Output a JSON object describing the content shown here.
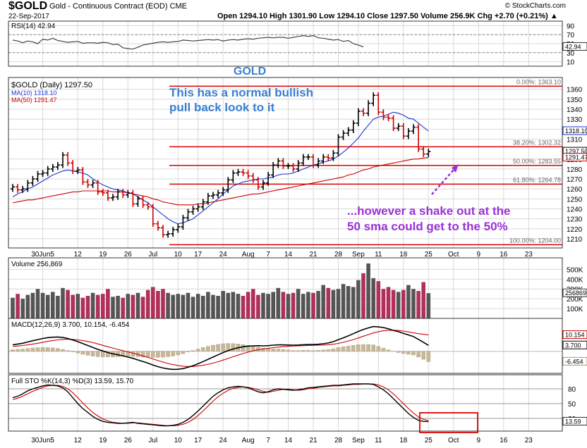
{
  "header": {
    "symbol": "$GOLD",
    "description": "Gold - Continuous Contract (EOD)  CME",
    "date": "22-Sep-2017",
    "source": "© StockCharts.com",
    "quote": "Open 1294.10  High 1301.90  Low 1294.10  Close 1297.50  Volume 256.9K  Chg +2.70 (+0.21%) ▲"
  },
  "colors": {
    "up_bar": "#000000",
    "down_bar": "#cc0000",
    "ma10": "#1a33cc",
    "ma50": "#cc0000",
    "annotation_blue": "#3a7fd0",
    "annotation_purple": "#9b30d9",
    "fib_line": "#dd0000",
    "volume_up": "#555555",
    "volume_down": "#b0305a",
    "macd_hist": "#c8b89a",
    "grid": "#d8d8d8"
  },
  "chart_data": [
    {
      "panel": "rsi",
      "type": "line",
      "title": "RSI(14) 42.94",
      "y_ticks": [
        "90",
        "70",
        "50",
        "30",
        "10"
      ],
      "last_label": "42.94",
      "series": [
        {
          "name": "RSI(14)",
          "values": [
            58,
            56,
            52,
            56,
            54,
            50,
            60,
            58,
            62,
            57,
            55,
            53,
            54,
            55,
            51,
            52,
            52,
            51,
            53,
            52,
            48,
            49,
            41,
            39,
            38,
            42,
            47,
            49,
            51,
            53,
            54,
            53,
            54,
            55,
            58,
            57,
            56,
            57,
            58,
            59,
            58,
            59,
            56,
            58,
            59,
            58,
            60,
            61,
            60,
            62,
            63,
            64,
            63,
            64,
            64,
            62,
            64,
            66,
            68,
            66,
            68,
            63,
            62,
            60,
            58,
            59,
            55,
            57,
            50,
            47,
            43
          ]
        }
      ]
    },
    {
      "panel": "price",
      "type": "ohlc",
      "title": "$GOLD (Daily) 1297.50",
      "legend": [
        {
          "name": "MA(10) 1318.10",
          "color": "#1a33cc"
        },
        {
          "name": "MA(50) 1291.47",
          "color": "#cc0000"
        }
      ],
      "ylim": [
        1200,
        1372
      ],
      "y_ticks": [
        1210,
        1220,
        1230,
        1240,
        1250,
        1260,
        1270,
        1280,
        1290,
        1310,
        1320,
        1330,
        1340,
        1350,
        1360
      ],
      "value_labels": [
        "1318.10",
        "1297.50",
        "1291.47"
      ],
      "x_ticks": [
        {
          "label": "30Jun5",
          "idx": 6
        },
        {
          "label": "12",
          "idx": 13
        },
        {
          "label": "19",
          "idx": 18
        },
        {
          "label": "26",
          "idx": 23
        },
        {
          "label": "Jul",
          "idx": 28
        },
        {
          "label": "10",
          "idx": 33
        },
        {
          "label": "17",
          "idx": 37
        },
        {
          "label": "24",
          "idx": 42
        },
        {
          "label": "Aug",
          "idx": 47
        },
        {
          "label": "7",
          "idx": 51
        },
        {
          "label": "14",
          "idx": 55
        },
        {
          "label": "21",
          "idx": 60
        },
        {
          "label": "28",
          "idx": 65
        },
        {
          "label": "Sep",
          "idx": 69
        },
        {
          "label": "11",
          "idx": 73
        },
        {
          "label": "18",
          "idx": 78
        },
        {
          "label": "25",
          "idx": 83
        },
        {
          "label": "Oct",
          "idx": 88
        },
        {
          "label": "9",
          "idx": 93
        },
        {
          "label": "16",
          "idx": 98
        },
        {
          "label": "23",
          "idx": 103
        }
      ],
      "closes": [
        1262,
        1259,
        1260,
        1266,
        1270,
        1275,
        1276,
        1280,
        1282,
        1284,
        1294,
        1286,
        1278,
        1279,
        1267,
        1264,
        1266,
        1257,
        1256,
        1251,
        1252,
        1257,
        1254,
        1256,
        1245,
        1250,
        1244,
        1242,
        1225,
        1221,
        1214,
        1215,
        1219,
        1222,
        1231,
        1237,
        1240,
        1242,
        1247,
        1253,
        1254,
        1256,
        1259,
        1269,
        1276,
        1277,
        1276,
        1273,
        1269,
        1262,
        1266,
        1274,
        1284,
        1288,
        1283,
        1283,
        1280,
        1286,
        1292,
        1292,
        1284,
        1288,
        1292,
        1291,
        1296,
        1312,
        1316,
        1319,
        1326,
        1338,
        1336,
        1346,
        1354,
        1337,
        1332,
        1331,
        1321,
        1323,
        1313,
        1318,
        1322,
        1300,
        1295,
        1297.5
      ],
      "ma10": [
        1252,
        1255,
        1257,
        1260,
        1262,
        1265,
        1268,
        1271,
        1274,
        1276,
        1278,
        1279,
        1278,
        1277,
        1276,
        1274,
        1270,
        1267,
        1264,
        1262,
        1260,
        1259,
        1258,
        1256,
        1255,
        1252,
        1249,
        1246,
        1242,
        1238,
        1234,
        1230,
        1227,
        1225,
        1226,
        1228,
        1230,
        1234,
        1238,
        1242,
        1246,
        1250,
        1255,
        1259,
        1263,
        1265,
        1267,
        1268,
        1269,
        1270,
        1270,
        1271,
        1272,
        1274,
        1275,
        1275,
        1276,
        1278,
        1280,
        1282,
        1284,
        1285,
        1287,
        1288,
        1290,
        1293,
        1297,
        1301,
        1306,
        1311,
        1318,
        1324,
        1330,
        1332,
        1333,
        1335,
        1337,
        1336,
        1334,
        1331,
        1330,
        1326,
        1322,
        1318.1
      ],
      "ma50": [
        1246,
        1247,
        1248,
        1249,
        1249,
        1250,
        1251,
        1252,
        1253,
        1254,
        1255,
        1256,
        1257,
        1257,
        1258,
        1258,
        1258,
        1258,
        1258,
        1258,
        1257,
        1257,
        1257,
        1256,
        1255,
        1254,
        1253,
        1252,
        1250,
        1249,
        1247,
        1246,
        1245,
        1244,
        1244,
        1244,
        1244,
        1245,
        1245,
        1246,
        1247,
        1248,
        1249,
        1250,
        1251,
        1252,
        1253,
        1254,
        1255,
        1255,
        1256,
        1257,
        1258,
        1259,
        1260,
        1261,
        1262,
        1263,
        1264,
        1265,
        1266,
        1267,
        1268,
        1269,
        1270,
        1271,
        1272,
        1274,
        1275,
        1277,
        1279,
        1280,
        1282,
        1283,
        1284,
        1285,
        1286,
        1287,
        1288,
        1289,
        1290,
        1290,
        1291,
        1291.47
      ],
      "fib_levels": [
        {
          "label": "0.00%: 1363.10",
          "value": 1363.1
        },
        {
          "label": "38.20%: 1302.32",
          "value": 1302.32
        },
        {
          "label": "50.00%: 1283.55",
          "value": 1283.55
        },
        {
          "label": "61.80%: 1264.78",
          "value": 1264.78
        },
        {
          "label": "100.00%: 1204.00",
          "value": 1204.0
        }
      ],
      "annotations": [
        "GOLD",
        "This has a normal bullish",
        "pull back look to it",
        "...however a shake out at the",
        "50 sma could get to the 50%"
      ]
    },
    {
      "panel": "volume",
      "type": "bar",
      "title": "Volume 256,869",
      "y_ticks": [
        "500K",
        "400K",
        "300K",
        "200K",
        "100K"
      ],
      "last_label": "256869",
      "values": [
        210,
        250,
        200,
        240,
        260,
        300,
        260,
        240,
        270,
        230,
        310,
        290,
        240,
        250,
        210,
        230,
        260,
        240,
        250,
        300,
        220,
        230,
        210,
        250,
        240,
        260,
        220,
        290,
        320,
        280,
        300,
        260,
        240,
        250,
        240,
        260,
        220,
        250,
        230,
        270,
        240,
        230,
        280,
        260,
        270,
        250,
        230,
        270,
        300,
        240,
        260,
        250,
        270,
        310,
        270,
        250,
        260,
        300,
        250,
        270,
        260,
        280,
        340,
        310,
        290,
        300,
        350,
        330,
        320,
        390,
        460,
        560,
        410,
        380,
        300,
        320,
        290,
        270,
        290,
        340,
        300,
        280,
        370,
        256.869
      ]
    },
    {
      "panel": "macd",
      "type": "line",
      "title": "MACD(12,26,9) 3.700, 10.154, -6.454",
      "value_labels": [
        "10.154",
        "3.700",
        "-6.454"
      ],
      "macd": [
        4.0,
        4.5,
        5.0,
        5.8,
        6.6,
        7.3,
        8.0,
        8.5,
        8.8,
        8.9,
        8.6,
        8.0,
        7.0,
        6.0,
        4.8,
        3.6,
        2.4,
        1.2,
        0.2,
        -0.8,
        -1.6,
        -2.2,
        -2.8,
        -3.6,
        -4.4,
        -5.4,
        -6.4,
        -7.4,
        -8.6,
        -9.6,
        -10.4,
        -11.0,
        -11.3,
        -11.2,
        -10.8,
        -10.0,
        -9.0,
        -7.8,
        -6.4,
        -5.0,
        -3.6,
        -2.2,
        -0.8,
        0.4,
        1.4,
        2.2,
        2.8,
        3.2,
        3.4,
        3.5,
        3.4,
        3.5,
        3.8,
        4.0,
        4.0,
        3.9,
        3.8,
        3.9,
        4.1,
        4.2,
        4.2,
        4.4,
        4.7,
        5.2,
        6.0,
        7.2,
        8.4,
        9.6,
        11.0,
        12.4,
        13.6,
        14.6,
        15.4,
        15.2,
        14.8,
        14.0,
        13.0,
        12.2,
        11.2,
        10.2,
        9.2,
        7.4,
        5.6,
        3.7
      ],
      "signal": [
        3.0,
        3.3,
        3.6,
        4.0,
        4.5,
        5.0,
        5.6,
        6.2,
        6.7,
        7.1,
        7.4,
        7.5,
        7.4,
        7.1,
        6.7,
        6.1,
        5.4,
        4.6,
        3.7,
        2.8,
        2.0,
        1.2,
        0.4,
        -0.4,
        -1.2,
        -2.0,
        -2.9,
        -3.8,
        -4.8,
        -5.8,
        -6.7,
        -7.6,
        -8.3,
        -8.9,
        -9.3,
        -9.5,
        -9.5,
        -9.2,
        -8.8,
        -8.1,
        -7.4,
        -6.5,
        -5.5,
        -4.5,
        -3.4,
        -2.4,
        -1.4,
        -0.5,
        0.3,
        0.9,
        1.4,
        1.9,
        2.3,
        2.6,
        2.9,
        3.1,
        3.3,
        3.4,
        3.5,
        3.6,
        3.7,
        3.8,
        3.9,
        4.1,
        4.4,
        4.9,
        5.6,
        6.4,
        7.3,
        8.3,
        9.4,
        10.4,
        11.4,
        12.2,
        12.8,
        13.1,
        13.1,
        13.0,
        12.6,
        12.1,
        11.5,
        11.0,
        10.6,
        10.154
      ],
      "histogram": [
        1.0,
        1.2,
        1.4,
        1.8,
        2.1,
        2.3,
        2.4,
        2.3,
        2.1,
        1.8,
        1.2,
        0.5,
        -0.4,
        -1.1,
        -1.9,
        -2.5,
        -3.0,
        -3.4,
        -3.5,
        -3.6,
        -3.6,
        -3.4,
        -3.2,
        -3.2,
        -3.2,
        -3.4,
        -3.5,
        -3.6,
        -3.8,
        -3.8,
        -3.7,
        -3.4,
        -3.0,
        -2.3,
        -1.5,
        -0.5,
        0.5,
        1.4,
        2.4,
        3.1,
        3.8,
        4.3,
        4.7,
        4.9,
        4.8,
        4.6,
        4.2,
        3.7,
        3.1,
        2.6,
        2.0,
        1.6,
        1.5,
        1.4,
        1.1,
        0.8,
        0.5,
        0.5,
        0.6,
        0.6,
        0.5,
        0.6,
        0.8,
        1.1,
        1.6,
        2.3,
        2.8,
        3.2,
        3.7,
        4.1,
        4.2,
        4.2,
        4.0,
        3.0,
        2.0,
        0.9,
        -0.1,
        -0.8,
        -1.4,
        -1.9,
        -2.3,
        -3.6,
        -5.0,
        -6.454
      ]
    },
    {
      "panel": "stochastic",
      "type": "line",
      "title": "Full STO %K(14,3) %D(3) 13.59, 15.70",
      "y_ticks": [
        "80",
        "50",
        "20"
      ],
      "last_label": "13.59",
      "series": [
        {
          "name": "%K(14,3)",
          "values": [
            62,
            65,
            70,
            76,
            80,
            83,
            86,
            88,
            87,
            86,
            82,
            74,
            62,
            50,
            40,
            32,
            24,
            18,
            14,
            12,
            11,
            10,
            10,
            11,
            12,
            10,
            9,
            8,
            7,
            6,
            5,
            5,
            6,
            8,
            12,
            18,
            26,
            35,
            45,
            55,
            65,
            72,
            78,
            82,
            84,
            85,
            84,
            82,
            78,
            74,
            72,
            74,
            78,
            80,
            79,
            78,
            77,
            78,
            80,
            82,
            83,
            84,
            85,
            86,
            87,
            87,
            88,
            89,
            90,
            90,
            90,
            90,
            89,
            84,
            78,
            70,
            60,
            50,
            40,
            30,
            22,
            16,
            14,
            13.59
          ]
        },
        {
          "name": "%D(3)",
          "values": [
            58,
            61,
            65,
            70,
            75,
            79,
            83,
            86,
            87,
            87,
            85,
            80,
            72,
            62,
            51,
            41,
            32,
            25,
            19,
            15,
            12,
            11,
            10,
            10,
            11,
            11,
            10,
            9,
            8,
            7,
            6,
            5,
            5,
            6,
            8,
            12,
            18,
            26,
            35,
            45,
            55,
            64,
            71,
            77,
            81,
            83,
            84,
            83,
            81,
            78,
            75,
            73,
            75,
            77,
            79,
            79,
            78,
            77,
            78,
            80,
            81,
            83,
            84,
            85,
            86,
            86,
            87,
            88,
            89,
            89,
            90,
            90,
            90,
            88,
            84,
            78,
            70,
            60,
            50,
            40,
            31,
            23,
            18,
            15.7
          ]
        }
      ]
    }
  ]
}
